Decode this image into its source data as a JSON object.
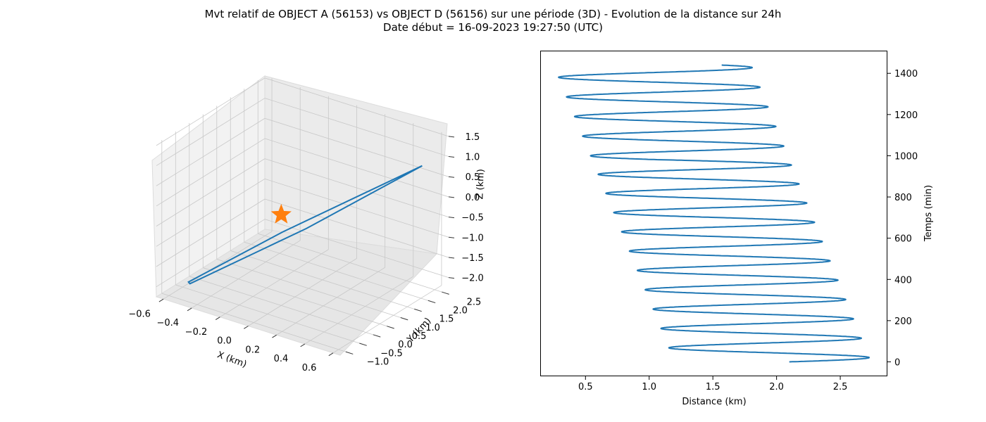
{
  "title_line1": "Mvt relatif de OBJECT A (56153) vs OBJECT D (56156) sur une période (3D) - Evolution de la distance sur 24h",
  "title_line2": "Date début = 16-09-2023 19:27:50 (UTC)",
  "colors": {
    "series": "#1f77b4",
    "marker": "#ff7f0e",
    "pane_left": "#f2f2f2",
    "pane_back": "#ebebeb",
    "pane_floor": "#e6e6e6",
    "grid": "#c8c8c8"
  },
  "chart_data": [
    {
      "type": "line3d",
      "xlabel": "X (km)",
      "ylabel": "Y (km)",
      "zlabel": "Z (km)",
      "xlim": [
        -0.65,
        0.65
      ],
      "ylim": [
        -1.2,
        2.75
      ],
      "zlim": [
        -2.25,
        1.55
      ],
      "x_ticks": [
        "-0.6",
        "-0.4",
        "-0.2",
        "0.0",
        "0.2",
        "0.4",
        "0.6"
      ],
      "y_ticks": [
        "-1.0",
        "-0.5",
        "0.0",
        "0.5",
        "1.0",
        "1.5",
        "2.0",
        "2.5"
      ],
      "z_ticks": [
        "-2.0",
        "-1.5",
        "-1.0",
        "-0.5",
        "0.0",
        "0.5",
        "1.0",
        "1.5"
      ],
      "marker": {
        "label": "star",
        "x": 0.0,
        "y": 0.0,
        "z": 0.0
      },
      "series": [
        {
          "points": [
            [
              0.55,
              2.3,
              0.85
            ],
            [
              0.1,
              0.4,
              -0.4
            ],
            [
              -0.5,
              -0.75,
              -1.95
            ],
            [
              -0.52,
              -0.7,
              -1.95
            ],
            [
              0.0,
              0.05,
              -0.45
            ],
            [
              0.55,
              2.3,
              0.85
            ]
          ]
        }
      ]
    },
    {
      "type": "line",
      "xlabel": "Distance (km)",
      "ylabel": "Temps (min)",
      "xlim": [
        0.15,
        2.87
      ],
      "ylim": [
        -70,
        1510
      ],
      "x_ticks": [
        "0.5",
        "1.0",
        "1.5",
        "2.0",
        "2.5"
      ],
      "y_ticks": [
        "0",
        "200",
        "400",
        "600",
        "800",
        "1000",
        "1200",
        "1400"
      ],
      "series": [
        {
          "distance_envelope": {
            "min_start": 1.2,
            "min_end": 0.25,
            "max_start": 2.74,
            "max_end": 1.8
          },
          "start": [
            2.1,
            0
          ],
          "end": [
            1.5,
            1440
          ],
          "period_min": 95.2
        }
      ]
    }
  ]
}
